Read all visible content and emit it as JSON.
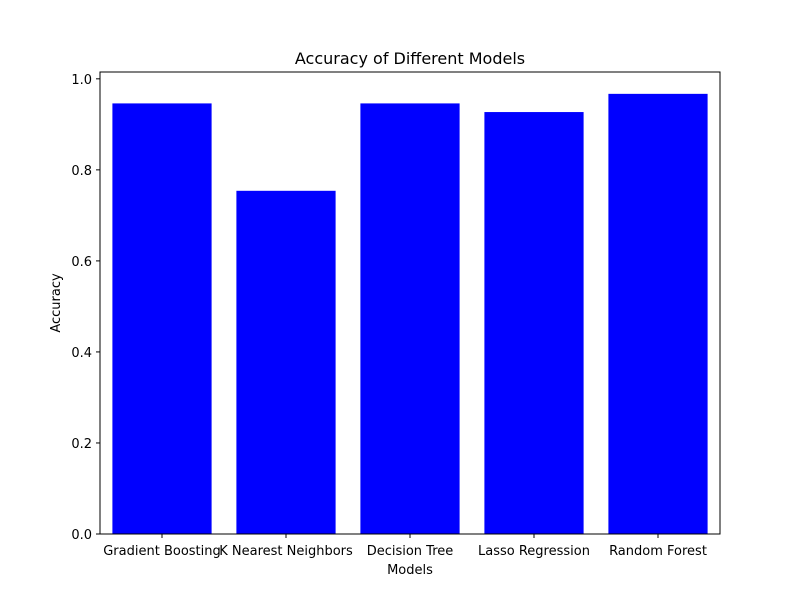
{
  "chart_data": {
    "type": "bar",
    "title": "Accuracy of Different Models",
    "xlabel": "Models",
    "ylabel": "Accuracy",
    "categories": [
      "Gradient Boosting",
      "K Nearest Neighbors",
      "Decision Tree",
      "Lasso Regression",
      "Random Forest"
    ],
    "values": [
      0.946,
      0.754,
      0.946,
      0.927,
      0.967
    ],
    "ylim": [
      0,
      1.015
    ],
    "yticks": [
      0.0,
      0.2,
      0.4,
      0.6,
      0.8,
      1.0
    ],
    "ytick_labels": [
      "0.0",
      "0.2",
      "0.4",
      "0.6",
      "0.8",
      "1.0"
    ],
    "bar_color": "#0000ff",
    "grid": false,
    "legend": false
  }
}
